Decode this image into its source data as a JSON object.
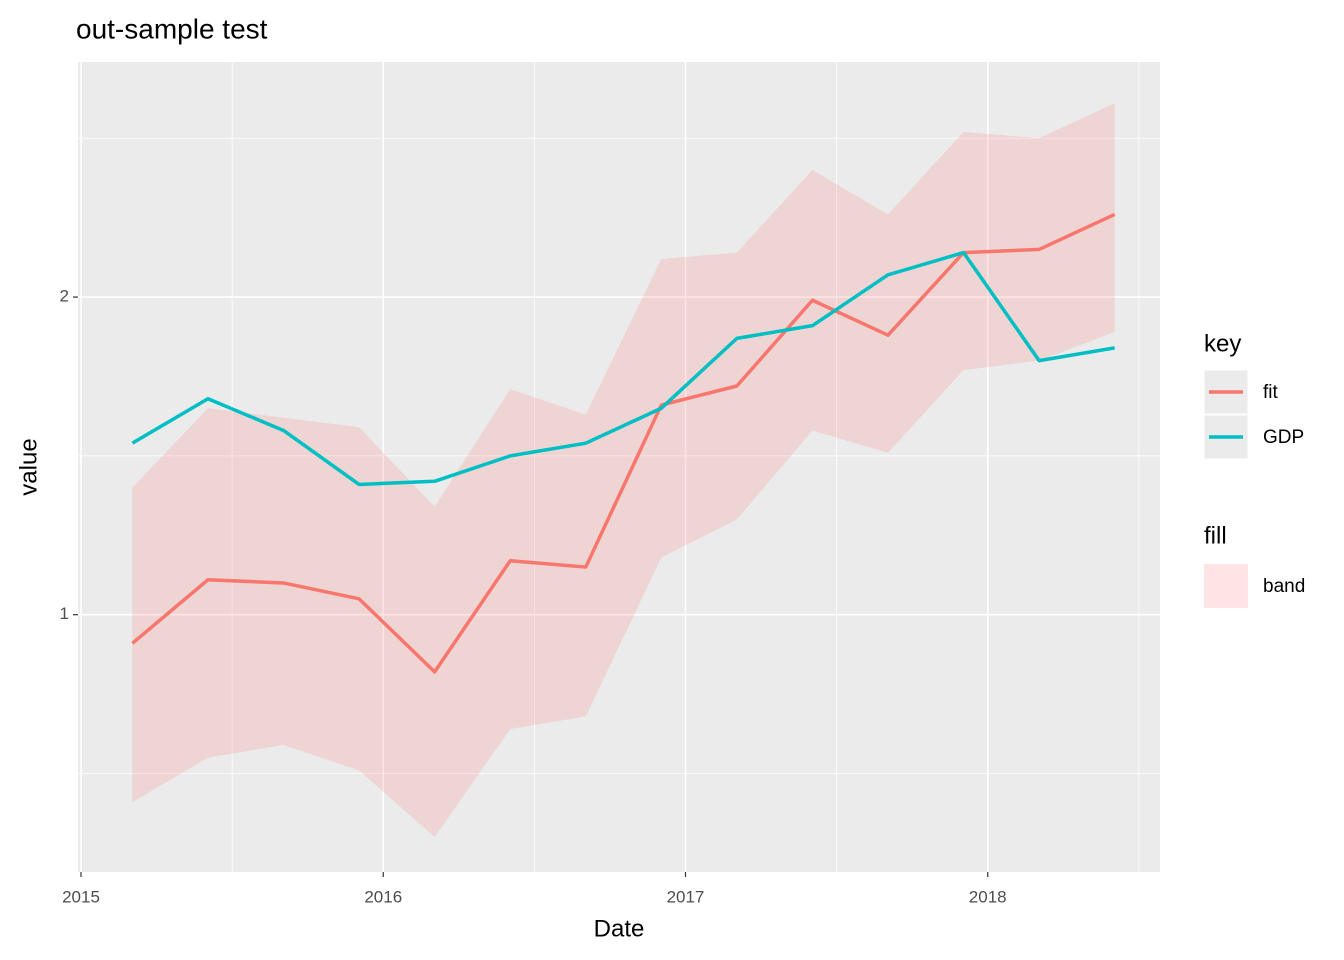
{
  "chart_data": {
    "type": "line",
    "title": "out-sample test",
    "x_label": "Date",
    "y_label": "value",
    "x": [
      2015.17,
      2015.42,
      2015.67,
      2015.92,
      2016.17,
      2016.42,
      2016.67,
      2016.92,
      2017.17,
      2017.42,
      2017.67,
      2017.92,
      2018.17,
      2018.42
    ],
    "series": [
      {
        "name": "fit",
        "color": "#F8766D",
        "values": [
          0.91,
          1.11,
          1.1,
          1.05,
          0.82,
          1.17,
          1.15,
          1.66,
          1.72,
          1.99,
          1.88,
          2.14,
          2.15,
          2.26
        ]
      },
      {
        "name": "GDP",
        "color": "#00BFC4",
        "values": [
          1.54,
          1.68,
          1.58,
          1.41,
          1.42,
          1.5,
          1.54,
          1.65,
          1.87,
          1.91,
          2.07,
          2.14,
          1.8,
          1.84
        ]
      }
    ],
    "band": {
      "name": "band",
      "color": "#F8766D",
      "opacity": 0.2,
      "lower": [
        0.41,
        0.55,
        0.59,
        0.51,
        0.3,
        0.64,
        0.68,
        1.18,
        1.3,
        1.58,
        1.51,
        1.77,
        1.8,
        1.89
      ],
      "upper": [
        1.4,
        1.65,
        1.62,
        1.59,
        1.34,
        1.71,
        1.63,
        2.12,
        2.14,
        2.4,
        2.26,
        2.52,
        2.5,
        2.61
      ]
    },
    "legend_key_title": "key",
    "legend_fill_title": "fill",
    "xlim": [
      2014.99,
      2018.57
    ],
    "ylim": [
      0.19,
      2.74
    ],
    "xticks": [
      2015,
      2016,
      2017,
      2018
    ],
    "yticks": [
      1,
      2
    ],
    "x_minor_grid": [
      2015.5,
      2016.5,
      2017.5,
      2018.5
    ],
    "y_minor_grid": [
      0.5,
      1.5,
      2.5
    ],
    "grid": true,
    "legend_position": "right"
  }
}
